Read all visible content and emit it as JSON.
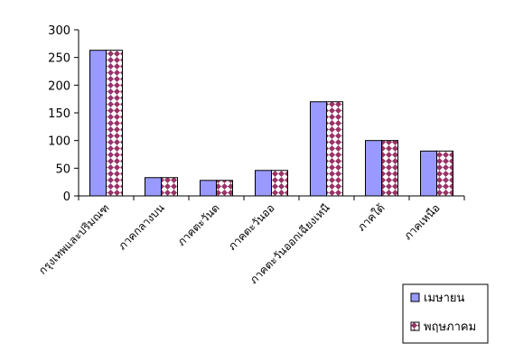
{
  "chart_data": {
    "type": "bar",
    "categories": [
      "กรุงเทพและปริมณฑ",
      "ภาคกลางบน",
      "ภาคตะวันต",
      "ภาคตะวันออ",
      "ภาคตะวันออกเฉียงเหนื",
      "ภาคใต้",
      "ภาคเหนือ"
    ],
    "series": [
      {
        "name": "เมษายน",
        "values": [
          263,
          33,
          28,
          46,
          170,
          100,
          81
        ],
        "color": "#9999ff",
        "pattern": "solid"
      },
      {
        "name": "พฤษภาคม",
        "values": [
          263,
          33,
          28,
          46,
          170,
          100,
          81
        ],
        "color": "#993366",
        "pattern": "diamond-check"
      }
    ],
    "ylim": [
      0,
      300
    ],
    "yticks": [
      0,
      50,
      100,
      150,
      200,
      250,
      300
    ],
    "grid": false,
    "legend_position": "bottom-right"
  }
}
